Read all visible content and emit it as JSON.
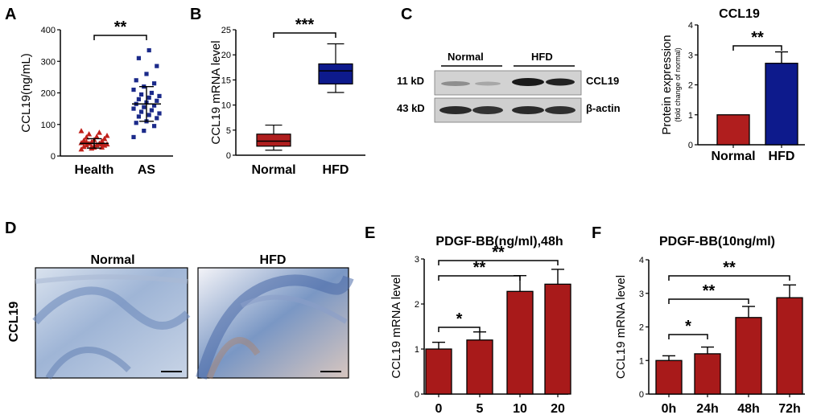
{
  "panels": {
    "A": {
      "label": "A",
      "chart_data": {
        "type": "scatter",
        "categories": [
          "Health",
          "AS"
        ],
        "ylabel": "CCL19(ng/mL)",
        "ylim": [
          0,
          400
        ],
        "yticks": [
          "0",
          "100",
          "200",
          "300",
          "400"
        ],
        "series": [
          {
            "values": [
              22,
              25,
              28,
              30,
              32,
              34,
              35,
              36,
              38,
              40,
              40,
              42,
              45,
              48,
              50,
              52,
              55,
              60,
              62,
              65,
              70,
              75,
              80,
              30,
              38,
              44,
              28,
              55,
              46,
              35
            ],
            "mean": 40,
            "sd": 15,
            "color": "#c0201a"
          },
          {
            "values": [
              60,
              80,
              95,
              105,
              110,
              120,
              125,
              130,
              135,
              140,
              145,
              150,
              155,
              160,
              165,
              170,
              175,
              180,
              185,
              190,
              195,
              200,
              210,
              220,
              230,
              240,
              260,
              285,
              310,
              335
            ],
            "mean": 165,
            "sd": 55,
            "color": "#1b2a8a"
          }
        ],
        "significance": "**"
      }
    },
    "B": {
      "label": "B",
      "chart_data": {
        "type": "box",
        "categories": [
          "Normal",
          "HFD"
        ],
        "ylabel": "CCL19 mRNA level",
        "ylim": [
          0,
          25
        ],
        "yticks": [
          "0",
          "5",
          "10",
          "15",
          "20",
          "25"
        ],
        "boxes": [
          {
            "min": 1,
            "q1": 1.8,
            "median": 2.8,
            "q3": 4.2,
            "max": 6.0,
            "color": "#b01e1e"
          },
          {
            "min": 12.5,
            "q1": 14.2,
            "median": 16.8,
            "q3": 18.2,
            "max": 22.2,
            "color": "#0d1a8c"
          }
        ],
        "significance": "***"
      }
    },
    "C": {
      "label": "C",
      "blot": {
        "groups": [
          "Normal",
          "HFD"
        ],
        "rows": [
          {
            "size": "11 kD",
            "protein": "CCL19"
          },
          {
            "size": "43 kD",
            "protein": "β-actin"
          }
        ]
      },
      "chart_data": {
        "type": "bar",
        "title": "CCL19",
        "categories": [
          "Normal",
          "HFD"
        ],
        "values": [
          1.0,
          2.72
        ],
        "errors": [
          0,
          0.38
        ],
        "colors": [
          "#b01e1e",
          "#0d1a8c"
        ],
        "ylabel": "Protein expression",
        "ylabel_sub": "(fold change of normal)",
        "ylim": [
          0,
          4
        ],
        "yticks": [
          "0",
          "1",
          "2",
          "3",
          "4"
        ],
        "significance": "**"
      }
    },
    "D": {
      "label": "D",
      "row_label": "CCL19",
      "images": [
        "Normal",
        "HFD"
      ]
    },
    "E": {
      "label": "E",
      "chart_data": {
        "type": "bar",
        "title": "PDGF-BB(ng/ml),48h",
        "categories": [
          "0",
          "5",
          "10",
          "20"
        ],
        "values": [
          1.0,
          1.2,
          2.28,
          2.44
        ],
        "errors": [
          0.15,
          0.18,
          0.35,
          0.33
        ],
        "color": "#a81a1a",
        "ylabel": "CCL19 mRNA level",
        "ylim": [
          0,
          3
        ],
        "yticks": [
          "0",
          "1",
          "2",
          "3"
        ],
        "comparisons": [
          "*",
          "**",
          "**"
        ]
      }
    },
    "F": {
      "label": "F",
      "chart_data": {
        "type": "bar",
        "title": "PDGF-BB(10ng/ml)",
        "categories": [
          "0h",
          "24h",
          "48h",
          "72h"
        ],
        "values": [
          1.0,
          1.2,
          2.28,
          2.87
        ],
        "errors": [
          0.14,
          0.2,
          0.33,
          0.38
        ],
        "color": "#a81a1a",
        "ylabel": "CCL19 mRNA level",
        "ylim": [
          0,
          4
        ],
        "yticks": [
          "0",
          "1",
          "2",
          "3",
          "4"
        ],
        "comparisons": [
          "*",
          "**",
          "**"
        ]
      }
    }
  }
}
